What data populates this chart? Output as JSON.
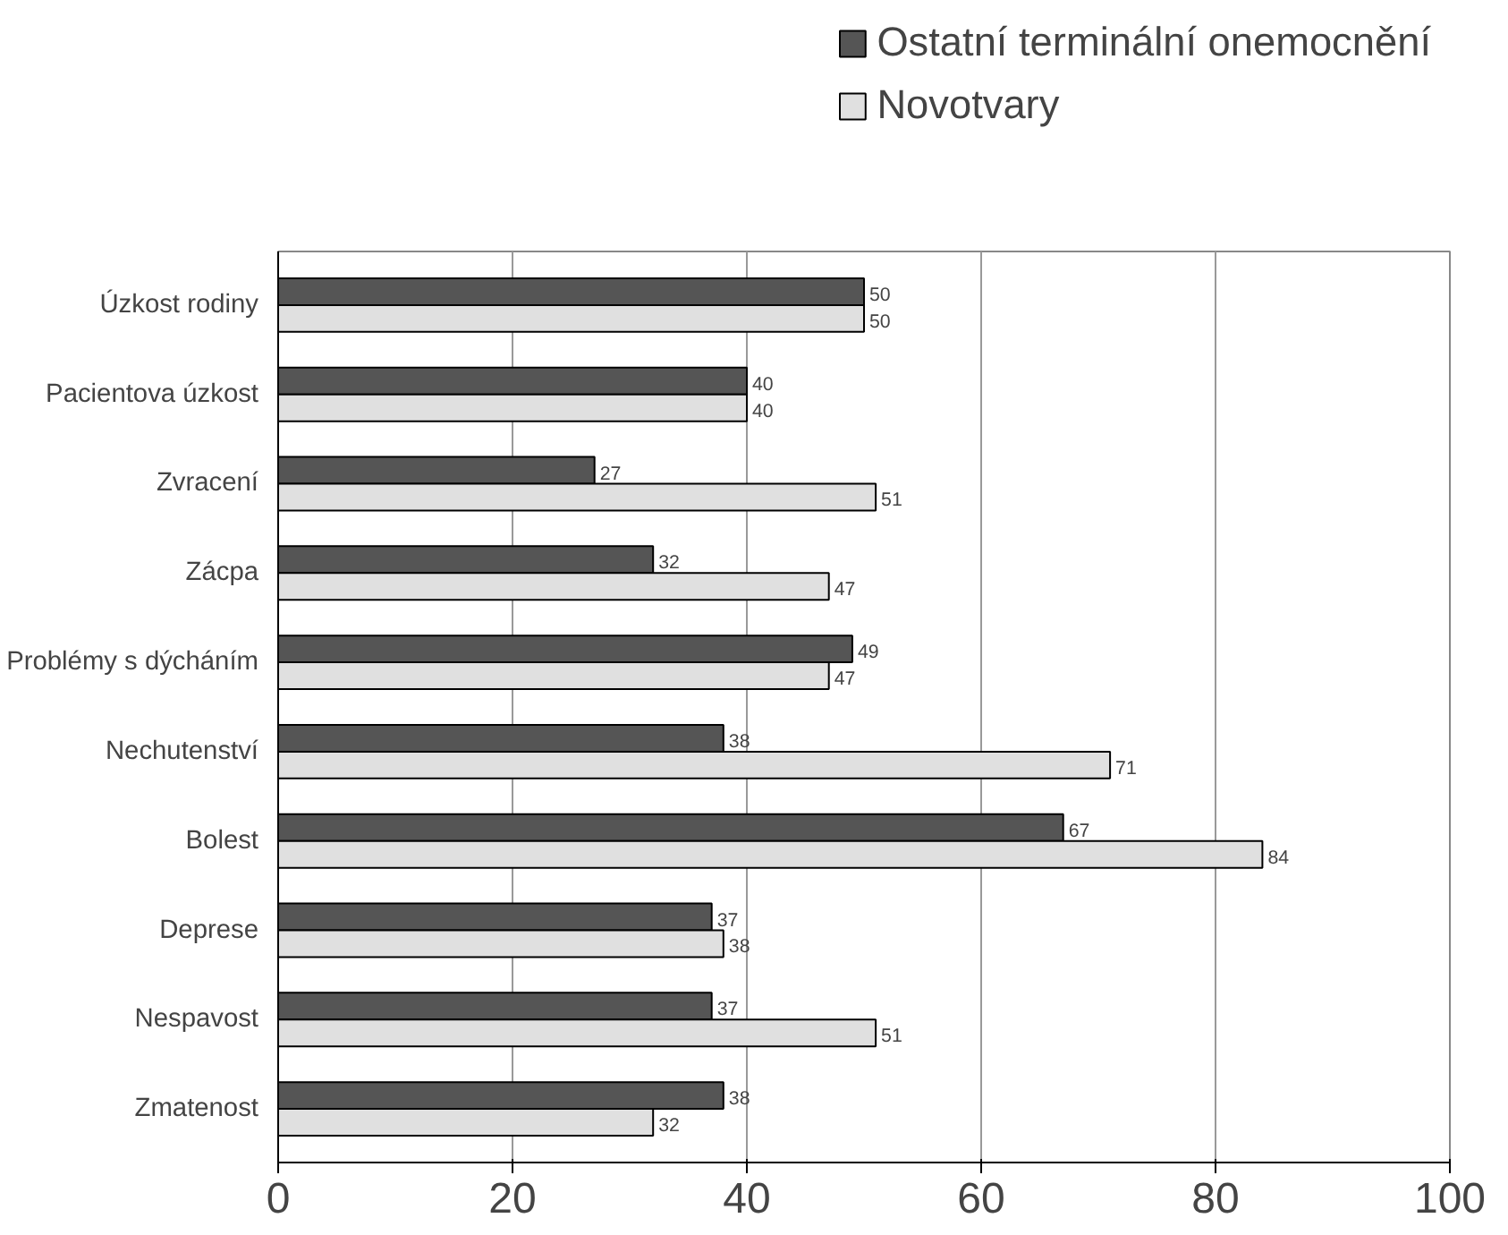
{
  "chart_data": {
    "type": "bar",
    "orientation": "horizontal",
    "categories": [
      "Úzkost rodiny",
      "Pacientova úzkost",
      "Zvracení",
      "Zácpa",
      "Problémy s dýcháním",
      "Nechutenství",
      "Bolest",
      "Deprese",
      "Nespavost",
      "Zmatenost"
    ],
    "series": [
      {
        "name": "Ostatní terminální onemocnění",
        "color": "#555555",
        "values": [
          50,
          40,
          27,
          32,
          49,
          38,
          67,
          37,
          37,
          38
        ]
      },
      {
        "name": "Novotvary",
        "color": "#e0e0e0",
        "values": [
          50,
          40,
          51,
          47,
          47,
          71,
          84,
          38,
          51,
          32
        ]
      }
    ],
    "xlim": [
      0,
      100
    ],
    "xticks": [
      0,
      20,
      40,
      60,
      80,
      100
    ],
    "grid": "x",
    "legend": "top right",
    "data_labels": true
  }
}
